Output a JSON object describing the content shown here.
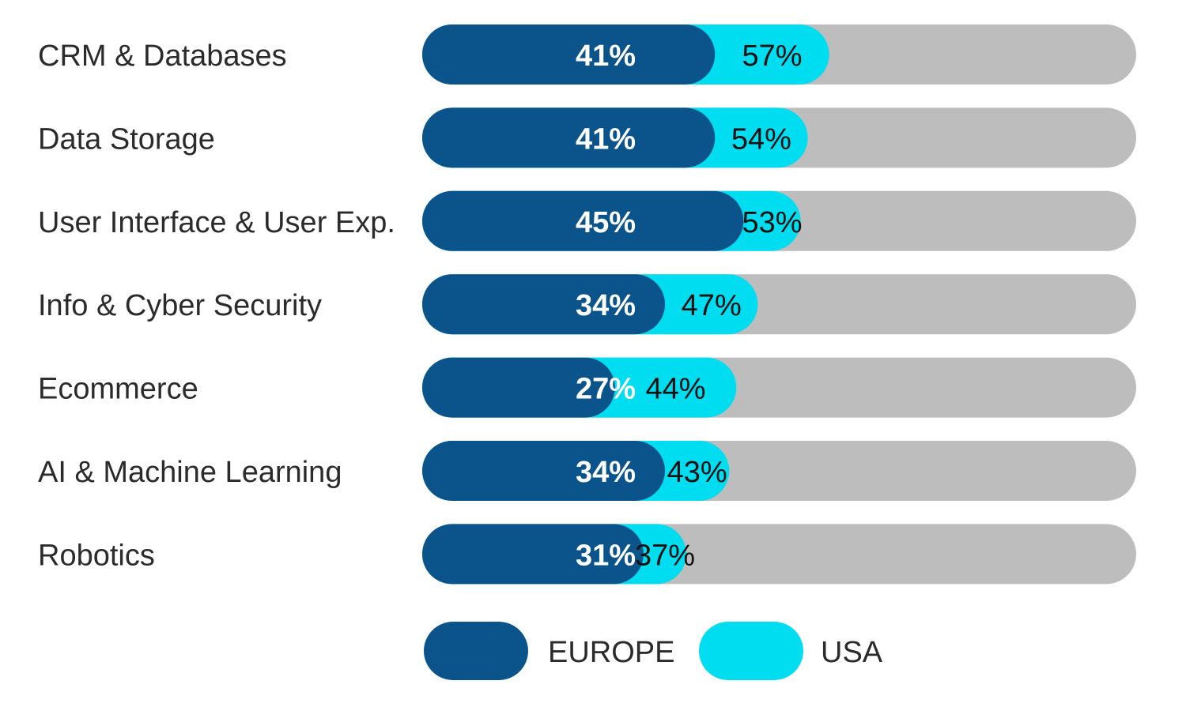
{
  "chart_data": {
    "type": "bar",
    "orientation": "horizontal",
    "layout": "overlapping",
    "categories": [
      "CRM & Databases",
      "Data Storage",
      "User Interface & User Exp.",
      "Info & Cyber Security",
      "Ecommerce",
      "AI & Machine Learning",
      "Robotics"
    ],
    "series": [
      {
        "name": "EUROPE",
        "color": "#0b548b",
        "values": [
          41,
          41,
          45,
          34,
          27,
          34,
          31
        ],
        "labels": [
          "41%",
          "41%",
          "45%",
          "34%",
          "27%",
          "34%",
          "31%"
        ]
      },
      {
        "name": "USA",
        "color": "#00dcf0",
        "values": [
          57,
          54,
          53,
          47,
          44,
          43,
          37
        ],
        "labels": [
          "57%",
          "54%",
          "53%",
          "47%",
          "44%",
          "43%",
          "37%"
        ]
      }
    ],
    "track_color": "#bdbdbd",
    "legend_position": "bottom",
    "grid": false,
    "xlim": [
      0,
      100
    ],
    "unit": "%"
  }
}
